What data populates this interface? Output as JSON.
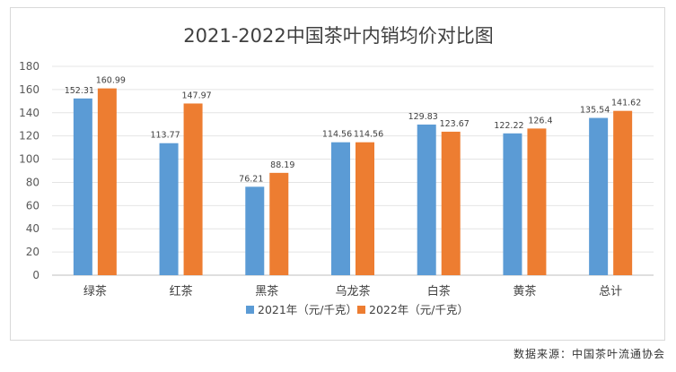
{
  "chart_data": {
    "type": "bar",
    "title": "2021-2022中国茶叶内销均价对比图",
    "categories": [
      "绿茶",
      "红茶",
      "黑茶",
      "乌龙茶",
      "白茶",
      "黄茶",
      "总计"
    ],
    "series": [
      {
        "name": "2021年（元/千克）",
        "values": [
          152.31,
          113.77,
          76.21,
          114.56,
          129.83,
          122.22,
          135.54
        ],
        "labels": [
          "152.31",
          "113.77",
          "76.21",
          "114.56",
          "129.83",
          "122.22",
          "135.54"
        ],
        "color": "#5b9bd5"
      },
      {
        "name": "2022年（元/千克）",
        "values": [
          160.99,
          147.97,
          88.19,
          114.56,
          123.67,
          126.4,
          141.62
        ],
        "labels": [
          "160.99",
          "147.97",
          "88.19",
          "114.56",
          "123.67",
          "126.4",
          "141.62"
        ],
        "color": "#ed7d31"
      }
    ],
    "ylim": [
      0,
      180
    ],
    "yticks": [
      0,
      20,
      40,
      60,
      80,
      100,
      120,
      140,
      160,
      180
    ],
    "grid": true,
    "legend": "bottom"
  },
  "source": "数据来源：中国茶叶流通协会"
}
